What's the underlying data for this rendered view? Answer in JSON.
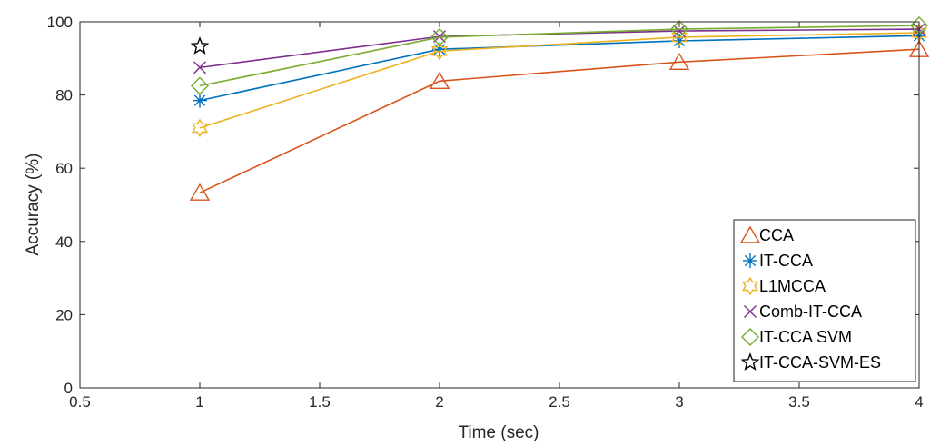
{
  "chart_data": {
    "type": "line",
    "title": "",
    "xlabel": "Time (sec)",
    "ylabel": "Accuracy (%)",
    "xlim": [
      0.5,
      4
    ],
    "ylim": [
      0,
      100
    ],
    "xticks": [
      0.5,
      1,
      1.5,
      2,
      2.5,
      3,
      3.5,
      4
    ],
    "xtick_labels": [
      "0.5",
      "1",
      "1.5",
      "2",
      "2.5",
      "3",
      "3.5",
      "4"
    ],
    "yticks": [
      0,
      20,
      40,
      60,
      80,
      100
    ],
    "ytick_labels": [
      "0",
      "20",
      "40",
      "60",
      "80",
      "100"
    ],
    "grid": false,
    "legend_position": "bottom-right",
    "series": [
      {
        "name": "CCA",
        "color": "#D95319",
        "marker": "triangle",
        "x": [
          1,
          2,
          3,
          4
        ],
        "values": [
          53.3,
          83.8,
          89.0,
          92.5
        ]
      },
      {
        "name": "IT-CCA",
        "color": "#0072BD",
        "marker": "asterisk",
        "x": [
          1,
          2,
          3,
          4
        ],
        "values": [
          78.5,
          92.5,
          94.8,
          96.2
        ]
      },
      {
        "name": "L1MCCA",
        "color": "#EDB120",
        "marker": "hexagram",
        "x": [
          1,
          2,
          3,
          4
        ],
        "values": [
          71.0,
          92.0,
          95.8,
          97.0
        ]
      },
      {
        "name": "Comb-IT-CCA",
        "color": "#7E2F8E",
        "marker": "x",
        "x": [
          1,
          2,
          3,
          4
        ],
        "values": [
          87.5,
          96.0,
          97.5,
          98.0
        ]
      },
      {
        "name": "IT-CCA SVM",
        "color": "#77AC30",
        "marker": "diamond",
        "x": [
          1,
          2,
          3,
          4
        ],
        "values": [
          82.5,
          95.8,
          98.0,
          99.0
        ]
      },
      {
        "name": "IT-CCA-SVM-ES",
        "color": "#000000",
        "marker": "pentagram",
        "x": [
          1
        ],
        "values": [
          93.3
        ]
      }
    ]
  }
}
